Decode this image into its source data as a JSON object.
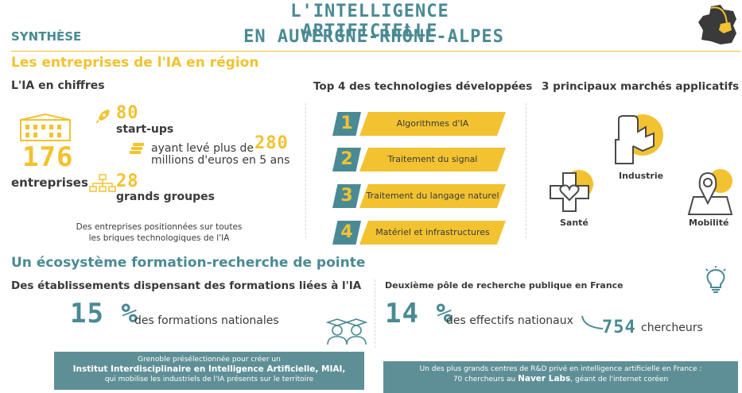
{
  "header": {
    "synthese": "SYNTHÈSE",
    "title_line1": "L'INTELLIGENCE ARTIFICIELLE",
    "title_line2": "EN AUVERGNE-RHÔNE-ALPES"
  },
  "section1": {
    "title": "Les entreprises de l'IA en région",
    "chiffres": {
      "heading": "L'IA en chiffres",
      "total_value": "176",
      "total_label": "entreprises",
      "startups_value": "80",
      "startups_label": "start-ups",
      "funding_prefix": "ayant levé plus de",
      "funding_value": "280",
      "funding_suffix": "millions d'euros en 5 ans",
      "groups_value": "28",
      "groups_label": "grands groupes",
      "note_line1": "Des entreprises positionnées sur toutes",
      "note_line2": "les briques technologiques de l'IA"
    },
    "technologies": {
      "heading": "Top 4 des technologies développées",
      "items": [
        {
          "num": "1",
          "label": "Algorithmes d'IA"
        },
        {
          "num": "2",
          "label": "Traitement du signal"
        },
        {
          "num": "3",
          "label": "Traitement du langage naturel"
        },
        {
          "num": "4",
          "label": "Matériel et infrastructures"
        }
      ]
    },
    "marches": {
      "heading": "3 principaux marchés applicatifs",
      "industrie": "Industrie",
      "sante": "Santé",
      "mobilite": "Mobilité"
    }
  },
  "section2": {
    "title": "Un écosystème formation-recherche de pointe",
    "formations": {
      "heading": "Des établissements dispensant des formations liées à l'IA",
      "value": "15 %",
      "label": "des formations nationales",
      "banner_line1": "Grenoble présélectionnée pour créer un",
      "banner_line2": "Institut Interdisciplinaire en Intelligence Artificielle, MIAI,",
      "banner_line3": "qui mobilise les industriels de l'IA présents sur le territoire"
    },
    "recherche": {
      "heading": "Deuxième pôle de recherche publique en France",
      "value": "14 %",
      "label": "des effectifs nationaux",
      "researchers_value": "754",
      "researchers_label": "chercheurs",
      "banner_line1": "Un des plus grands centres de R&D privé en intelligence artificielle en France :",
      "banner_line2_prefix": "70 chercheurs au",
      "banner_line2_bold": "Naver Labs",
      "banner_line2_suffix": ", géant de l'internet coréen"
    }
  },
  "colors": {
    "teal": "#4a8a94",
    "yellow": "#f2c230",
    "banner": "#5f8f96",
    "text": "#3a3a3a"
  },
  "icons": [
    "france-map-icon",
    "building-icon",
    "rocket-icon",
    "coins-icon",
    "org-chart-icon",
    "factory-icon",
    "health-cross-icon",
    "map-pin-icon",
    "lightbulb-icon",
    "graduates-icon"
  ]
}
